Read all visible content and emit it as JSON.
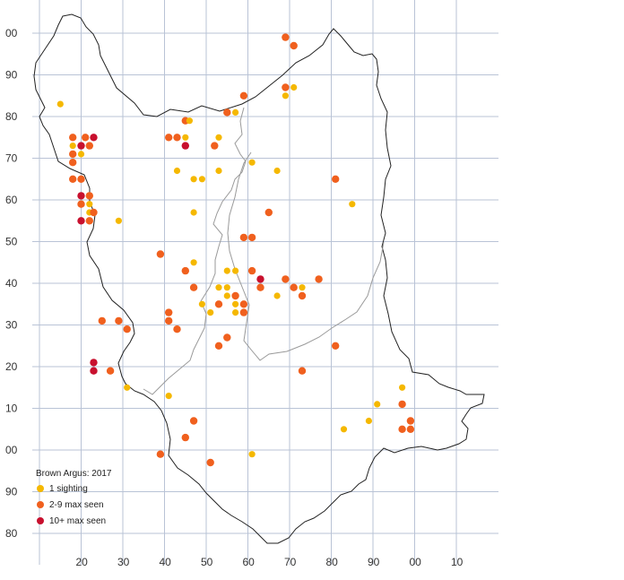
{
  "colors": {
    "grid": "#b9c3d6",
    "boundary": "#222222",
    "inner_boundary": "#9a9a9a",
    "one_sighting": "#f5b800",
    "two_to_nine": "#f0601e",
    "ten_plus": "#c8102e"
  },
  "legend": {
    "title": "Brown Argus:  2017",
    "items": [
      {
        "label": "1 sighting",
        "category": "1"
      },
      {
        "label": "2-9 max seen",
        "category": "2-9"
      },
      {
        "label": "10+ max seen",
        "category": "10+"
      }
    ]
  },
  "axes": {
    "x_labels": [
      "20",
      "30",
      "40",
      "50",
      "60",
      "70",
      "80",
      "90",
      "00",
      "10"
    ],
    "y_labels": [
      "00",
      "90",
      "80",
      "70",
      "60",
      "50",
      "40",
      "30",
      "20",
      "10",
      "00",
      "90",
      "80"
    ]
  },
  "chart_data": {
    "type": "scatter",
    "x_easting_km": [
      20,
      30,
      40,
      50,
      60,
      70,
      80,
      90,
      100,
      110
    ],
    "y_northing_km": [
      100,
      90,
      80,
      70,
      60,
      50,
      40,
      30,
      20,
      10,
      0,
      -10,
      -20
    ],
    "records": [
      {
        "x": 15,
        "y": 83,
        "c": "1"
      },
      {
        "x": 18,
        "y": 75,
        "c": "2-9"
      },
      {
        "x": 18,
        "y": 73,
        "c": "1"
      },
      {
        "x": 18,
        "y": 71,
        "c": "2-9"
      },
      {
        "x": 18,
        "y": 69,
        "c": "2-9"
      },
      {
        "x": 20,
        "y": 71,
        "c": "1"
      },
      {
        "x": 20,
        "y": 73,
        "c": "10+"
      },
      {
        "x": 21,
        "y": 75,
        "c": "2-9"
      },
      {
        "x": 22,
        "y": 73,
        "c": "2-9"
      },
      {
        "x": 23,
        "y": 75,
        "c": "10+"
      },
      {
        "x": 18,
        "y": 65,
        "c": "2-9"
      },
      {
        "x": 20,
        "y": 65,
        "c": "2-9"
      },
      {
        "x": 20,
        "y": 61,
        "c": "10+"
      },
      {
        "x": 20,
        "y": 59,
        "c": "2-9"
      },
      {
        "x": 22,
        "y": 61,
        "c": "2-9"
      },
      {
        "x": 22,
        "y": 59,
        "c": "1"
      },
      {
        "x": 22,
        "y": 57,
        "c": "1"
      },
      {
        "x": 22,
        "y": 55,
        "c": "2-9"
      },
      {
        "x": 20,
        "y": 55,
        "c": "10+"
      },
      {
        "x": 23,
        "y": 57,
        "c": "2-9"
      },
      {
        "x": 29,
        "y": 55,
        "c": "1"
      },
      {
        "x": 45,
        "y": 79,
        "c": "2-9"
      },
      {
        "x": 46,
        "y": 79,
        "c": "1"
      },
      {
        "x": 41,
        "y": 75,
        "c": "2-9"
      },
      {
        "x": 43,
        "y": 75,
        "c": "2-9"
      },
      {
        "x": 45,
        "y": 75,
        "c": "1"
      },
      {
        "x": 45,
        "y": 73,
        "c": "10+"
      },
      {
        "x": 53,
        "y": 75,
        "c": "1"
      },
      {
        "x": 55,
        "y": 81,
        "c": "2-9"
      },
      {
        "x": 57,
        "y": 81,
        "c": "1"
      },
      {
        "x": 59,
        "y": 85,
        "c": "2-9"
      },
      {
        "x": 52,
        "y": 73,
        "c": "2-9"
      },
      {
        "x": 61,
        "y": 69,
        "c": "1"
      },
      {
        "x": 67,
        "y": 67,
        "c": "1"
      },
      {
        "x": 43,
        "y": 67,
        "c": "1"
      },
      {
        "x": 47,
        "y": 65,
        "c": "1"
      },
      {
        "x": 49,
        "y": 65,
        "c": "1"
      },
      {
        "x": 53,
        "y": 67,
        "c": "1"
      },
      {
        "x": 69,
        "y": 99,
        "c": "2-9"
      },
      {
        "x": 71,
        "y": 97,
        "c": "2-9"
      },
      {
        "x": 69,
        "y": 87,
        "c": "2-9"
      },
      {
        "x": 71,
        "y": 87,
        "c": "1"
      },
      {
        "x": 69,
        "y": 85,
        "c": "1"
      },
      {
        "x": 81,
        "y": 65,
        "c": "2-9"
      },
      {
        "x": 85,
        "y": 59,
        "c": "1"
      },
      {
        "x": 47,
        "y": 57,
        "c": "1"
      },
      {
        "x": 65,
        "y": 57,
        "c": "2-9"
      },
      {
        "x": 59,
        "y": 51,
        "c": "2-9"
      },
      {
        "x": 61,
        "y": 51,
        "c": "2-9"
      },
      {
        "x": 39,
        "y": 47,
        "c": "2-9"
      },
      {
        "x": 47,
        "y": 45,
        "c": "1"
      },
      {
        "x": 45,
        "y": 43,
        "c": "2-9"
      },
      {
        "x": 55,
        "y": 43,
        "c": "1"
      },
      {
        "x": 57,
        "y": 43,
        "c": "1"
      },
      {
        "x": 61,
        "y": 43,
        "c": "2-9"
      },
      {
        "x": 63,
        "y": 41,
        "c": "10+"
      },
      {
        "x": 63,
        "y": 39,
        "c": "2-9"
      },
      {
        "x": 69,
        "y": 41,
        "c": "2-9"
      },
      {
        "x": 71,
        "y": 39,
        "c": "2-9"
      },
      {
        "x": 73,
        "y": 39,
        "c": "1"
      },
      {
        "x": 73,
        "y": 37,
        "c": "2-9"
      },
      {
        "x": 77,
        "y": 41,
        "c": "2-9"
      },
      {
        "x": 67,
        "y": 37,
        "c": "1"
      },
      {
        "x": 47,
        "y": 39,
        "c": "2-9"
      },
      {
        "x": 53,
        "y": 39,
        "c": "1"
      },
      {
        "x": 55,
        "y": 39,
        "c": "1"
      },
      {
        "x": 55,
        "y": 37,
        "c": "1"
      },
      {
        "x": 57,
        "y": 37,
        "c": "2-9"
      },
      {
        "x": 57,
        "y": 35,
        "c": "1"
      },
      {
        "x": 53,
        "y": 35,
        "c": "2-9"
      },
      {
        "x": 49,
        "y": 35,
        "c": "1"
      },
      {
        "x": 51,
        "y": 33,
        "c": "1"
      },
      {
        "x": 57,
        "y": 33,
        "c": "1"
      },
      {
        "x": 59,
        "y": 33,
        "c": "2-9"
      },
      {
        "x": 59,
        "y": 35,
        "c": "2-9"
      },
      {
        "x": 41,
        "y": 33,
        "c": "2-9"
      },
      {
        "x": 41,
        "y": 31,
        "c": "2-9"
      },
      {
        "x": 43,
        "y": 29,
        "c": "2-9"
      },
      {
        "x": 25,
        "y": 31,
        "c": "2-9"
      },
      {
        "x": 29,
        "y": 31,
        "c": "2-9"
      },
      {
        "x": 31,
        "y": 29,
        "c": "2-9"
      },
      {
        "x": 55,
        "y": 27,
        "c": "2-9"
      },
      {
        "x": 53,
        "y": 25,
        "c": "2-9"
      },
      {
        "x": 81,
        "y": 25,
        "c": "2-9"
      },
      {
        "x": 23,
        "y": 21,
        "c": "10+"
      },
      {
        "x": 23,
        "y": 19,
        "c": "10+"
      },
      {
        "x": 27,
        "y": 19,
        "c": "2-9"
      },
      {
        "x": 73,
        "y": 19,
        "c": "2-9"
      },
      {
        "x": 31,
        "y": 15,
        "c": "1"
      },
      {
        "x": 41,
        "y": 13,
        "c": "1"
      },
      {
        "x": 97,
        "y": 15,
        "c": "1"
      },
      {
        "x": 91,
        "y": 11,
        "c": "1"
      },
      {
        "x": 97,
        "y": 11,
        "c": "2-9"
      },
      {
        "x": 47,
        "y": 7,
        "c": "2-9"
      },
      {
        "x": 89,
        "y": 7,
        "c": "1"
      },
      {
        "x": 99,
        "y": 7,
        "c": "2-9"
      },
      {
        "x": 83,
        "y": 5,
        "c": "1"
      },
      {
        "x": 97,
        "y": 5,
        "c": "2-9"
      },
      {
        "x": 99,
        "y": 5,
        "c": "2-9"
      },
      {
        "x": 45,
        "y": 3,
        "c": "2-9"
      },
      {
        "x": 39,
        "y": -1,
        "c": "2-9"
      },
      {
        "x": 61,
        "y": -1,
        "c": "1"
      },
      {
        "x": 51,
        "y": -3,
        "c": "2-9"
      }
    ]
  }
}
